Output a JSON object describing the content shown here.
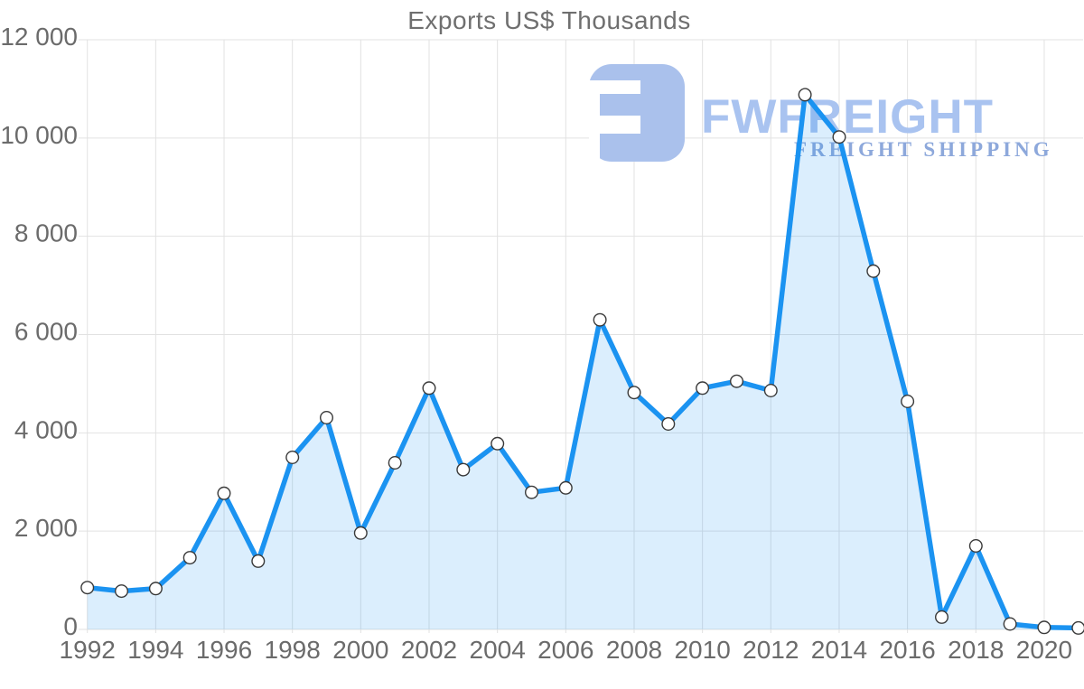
{
  "title": "Exports US$ Thousands",
  "watermark": {
    "brand": "FWFREIGHT",
    "tagline": "FREIGHT SHIPPING"
  },
  "colors": {
    "line": "#1b93f1",
    "area_fill": "rgba(33,150,243,0.16)",
    "grid": "#e2e2e2",
    "axis_text": "#6b6b6b",
    "title_text": "#6f6f6f",
    "marker_fill": "#ffffff",
    "marker_stroke": "#3a3a3a",
    "watermark_logo": "#aac1ec",
    "watermark_brand": "#a9c3f0",
    "watermark_tagline": "#8da8db"
  },
  "chart_data": {
    "type": "area",
    "title": "Exports US$ Thousands",
    "xlabel": "",
    "ylabel": "",
    "x": [
      1992,
      1993,
      1994,
      1995,
      1996,
      1997,
      1998,
      1999,
      2000,
      2001,
      2002,
      2003,
      2004,
      2005,
      2006,
      2007,
      2008,
      2009,
      2010,
      2011,
      2012,
      2013,
      2014,
      2015,
      2016,
      2017,
      2018,
      2019,
      2020,
      2021
    ],
    "values": [
      850,
      780,
      830,
      1460,
      2770,
      1390,
      3500,
      4310,
      1960,
      3390,
      4910,
      3250,
      3780,
      2790,
      2880,
      6300,
      4820,
      4180,
      4910,
      5050,
      4860,
      10880,
      10020,
      7290,
      4640,
      250,
      1700,
      110,
      40,
      30
    ],
    "ylim": [
      0,
      12000
    ],
    "ytick_interval": 2000,
    "ytick_labels": [
      "0",
      "2 000",
      "4 000",
      "6 000",
      "8 000",
      "10 000",
      "12 000"
    ],
    "xtick_years": [
      1992,
      1994,
      1996,
      1998,
      2000,
      2002,
      2004,
      2006,
      2008,
      2010,
      2012,
      2014,
      2016,
      2018,
      2020
    ],
    "xtick_labels": [
      "1992",
      "1994",
      "1996",
      "1998",
      "2000",
      "2002",
      "2004",
      "2006",
      "2008",
      "2010",
      "2012",
      "2014",
      "2016",
      "2018",
      "2020"
    ],
    "grid": true,
    "legend": false,
    "marker": "circle"
  }
}
